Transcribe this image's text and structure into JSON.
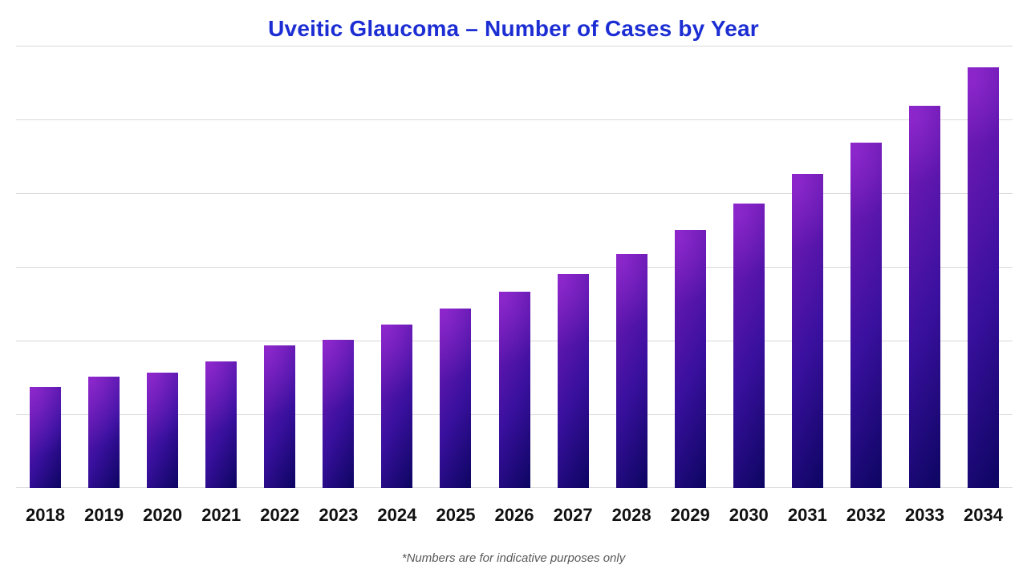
{
  "title": {
    "text": "Uveitic Glaucoma – Number of Cases by Year",
    "color": "#1c2ed3"
  },
  "footnote": {
    "text": "*Numbers are for indicative purposes only",
    "color": "#595959"
  },
  "colors": {
    "background": "#ffffff",
    "gridline": "#d9d9d9",
    "x_label": "#111111",
    "bar_gradient_top_left": "#7e1cba",
    "bar_gradient_mid": "#3a109f",
    "bar_gradient_bottom_right": "#0c0561"
  },
  "chart_data": {
    "type": "bar",
    "title": "Uveitic Glaucoma – Number of Cases by Year",
    "categories": [
      "2018",
      "2019",
      "2020",
      "2021",
      "2022",
      "2023",
      "2024",
      "2025",
      "2026",
      "2027",
      "2028",
      "2029",
      "2030",
      "2031",
      "2032",
      "2033",
      "2034"
    ],
    "values": [
      1.37,
      1.51,
      1.57,
      1.72,
      1.94,
      2.01,
      2.22,
      2.43,
      2.66,
      2.9,
      3.17,
      3.5,
      3.86,
      4.26,
      4.68,
      5.18,
      5.71
    ],
    "values_note": "No y-axis tick labels are shown in the chart; values are estimated in gridline units where 1.0 = one horizontal gridline interval and 0 = baseline",
    "xlabel": "",
    "ylabel": "",
    "ylim": [
      0,
      6
    ],
    "gridline_intervals": 6,
    "grid": "horizontal",
    "legend": "none",
    "annotations": [
      "*Numbers are for indicative purposes only"
    ]
  }
}
